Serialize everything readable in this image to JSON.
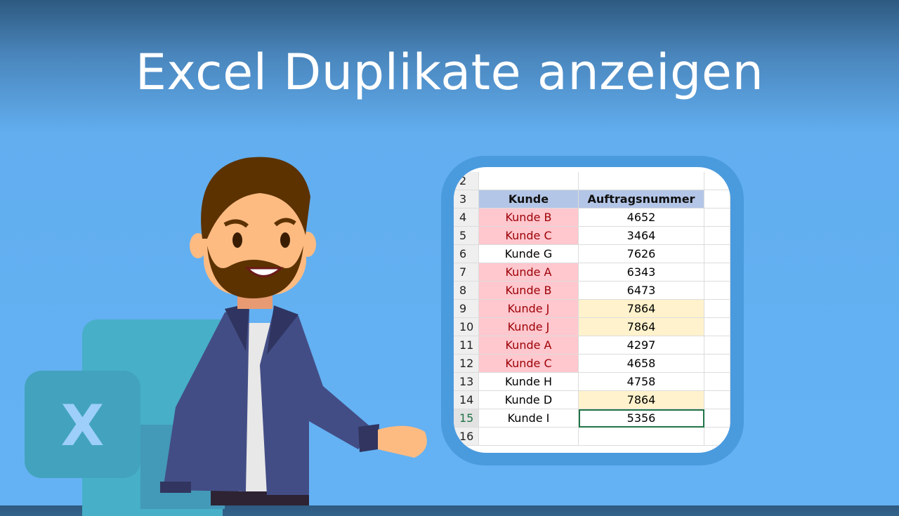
{
  "title": "Excel Duplikate anzeigen",
  "logo": {
    "letter": "X",
    "icon": "excel-logo-icon"
  },
  "sheet": {
    "header": {
      "row": "3",
      "col_a": "Kunde",
      "col_b": "Auftragsnummer"
    },
    "first_row": "2",
    "last_row": "16",
    "rows": [
      {
        "n": "4",
        "kunde": "Kunde B",
        "nr": "4652",
        "dup_kunde": true,
        "dup_nr": false
      },
      {
        "n": "5",
        "kunde": "Kunde C",
        "nr": "3464",
        "dup_kunde": true,
        "dup_nr": false
      },
      {
        "n": "6",
        "kunde": "Kunde G",
        "nr": "7626",
        "dup_kunde": false,
        "dup_nr": false
      },
      {
        "n": "7",
        "kunde": "Kunde A",
        "nr": "6343",
        "dup_kunde": true,
        "dup_nr": false
      },
      {
        "n": "8",
        "kunde": "Kunde B",
        "nr": "6473",
        "dup_kunde": true,
        "dup_nr": false
      },
      {
        "n": "9",
        "kunde": "Kunde J",
        "nr": "7864",
        "dup_kunde": true,
        "dup_nr": true
      },
      {
        "n": "10",
        "kunde": "Kunde J",
        "nr": "7864",
        "dup_kunde": true,
        "dup_nr": true
      },
      {
        "n": "11",
        "kunde": "Kunde A",
        "nr": "4297",
        "dup_kunde": true,
        "dup_nr": false
      },
      {
        "n": "12",
        "kunde": "Kunde C",
        "nr": "4658",
        "dup_kunde": true,
        "dup_nr": false
      },
      {
        "n": "13",
        "kunde": "Kunde H",
        "nr": "4758",
        "dup_kunde": false,
        "dup_nr": false
      },
      {
        "n": "14",
        "kunde": "Kunde D",
        "nr": "7864",
        "dup_kunde": false,
        "dup_nr": true
      },
      {
        "n": "15",
        "kunde": "Kunde I",
        "nr": "5356",
        "dup_kunde": false,
        "dup_nr": false,
        "selected": true
      }
    ]
  },
  "colors": {
    "dup_fill": "#ffc7ce",
    "dup_text": "#9c0006",
    "dup_num_fill": "#fff2cc",
    "header_fill": "#b4c6e7",
    "card_border": "#4a9ade",
    "selection": "#217346"
  }
}
